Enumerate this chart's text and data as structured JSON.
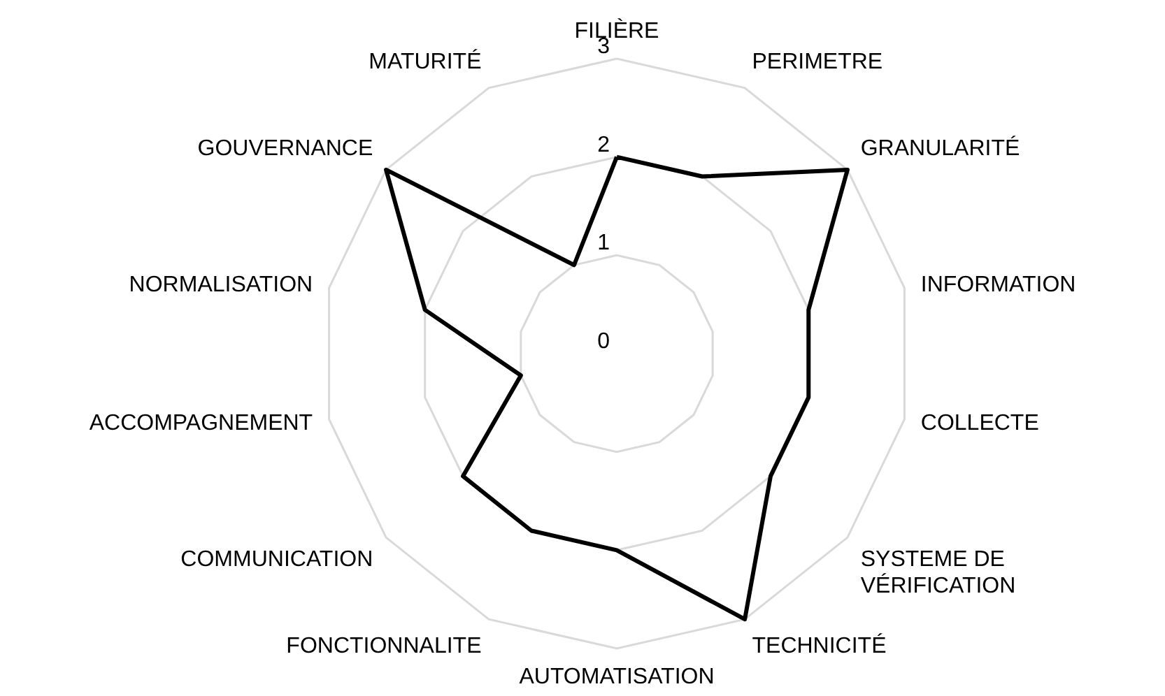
{
  "chart_data": {
    "type": "radar",
    "categories": [
      "FILIÈRE",
      "PERIMETRE",
      "GRANULARITÉ",
      "INFORMATION",
      "COLLECTE",
      "SYSTEME DE VÉRIFICATION",
      "TECHNICITÉ",
      "AUTOMATISATION",
      "FONCTIONNALITE",
      "COMMUNICATION",
      "ACCOMPAGNEMENT",
      "NORMALISATION",
      "GOUVERNANCE",
      "MATURITÉ"
    ],
    "series": [
      {
        "color": "#000000",
        "values": [
          2,
          2,
          3,
          2,
          2,
          2,
          3,
          2,
          2,
          2,
          1,
          2,
          3,
          1
        ]
      }
    ],
    "ylim": [
      0,
      3
    ],
    "yticks": [
      0,
      1,
      2,
      3
    ],
    "grid": true
  }
}
